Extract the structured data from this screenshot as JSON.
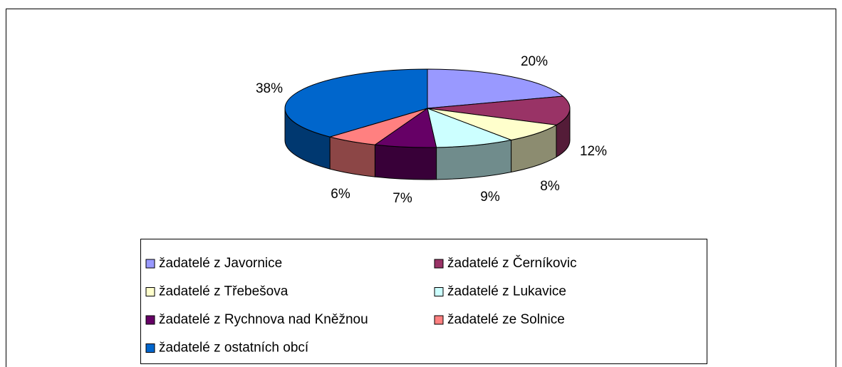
{
  "chart_data": {
    "type": "pie",
    "categories": [
      "žadatelé z Javornice",
      "žadatelé z Černíkovic",
      "žadatelé z Třebešova",
      "žadatelé z Lukavice",
      "žadatelé z Rychnova nad Kněžnou",
      "žadatelé ze Solnice",
      "žadatelé z ostatních obcí"
    ],
    "values": [
      20,
      12,
      8,
      9,
      7,
      6,
      38
    ],
    "value_labels": [
      "20%",
      "12%",
      "8%",
      "9%",
      "7%",
      "6%",
      "38%"
    ],
    "colors": [
      "#9999ff",
      "#993366",
      "#ffffcc",
      "#ccffff",
      "#660066",
      "#ff8080",
      "#0066cc"
    ],
    "legend": "bottom"
  }
}
